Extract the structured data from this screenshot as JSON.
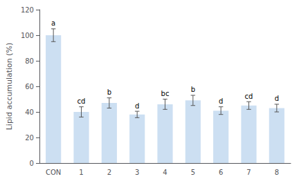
{
  "chart_data": {
    "type": "bar",
    "categories": [
      "CON",
      "1",
      "2",
      "3",
      "4",
      "5",
      "6",
      "7",
      "8"
    ],
    "values": [
      100,
      40,
      47,
      38,
      46,
      49,
      41,
      45,
      43
    ],
    "errors": [
      5,
      4,
      4,
      2.5,
      4,
      4,
      3,
      3,
      3
    ],
    "labels": [
      "a",
      "cd",
      "b",
      "d",
      "bc",
      "b",
      "d",
      "cd",
      "d"
    ],
    "color": "#ccdff2",
    "error_color": "#555555",
    "ylabel": "Lipid accumulation (%)",
    "ylim": [
      0,
      120
    ],
    "yticks": [
      0,
      20,
      40,
      60,
      80,
      100,
      120
    ],
    "grid": false
  }
}
